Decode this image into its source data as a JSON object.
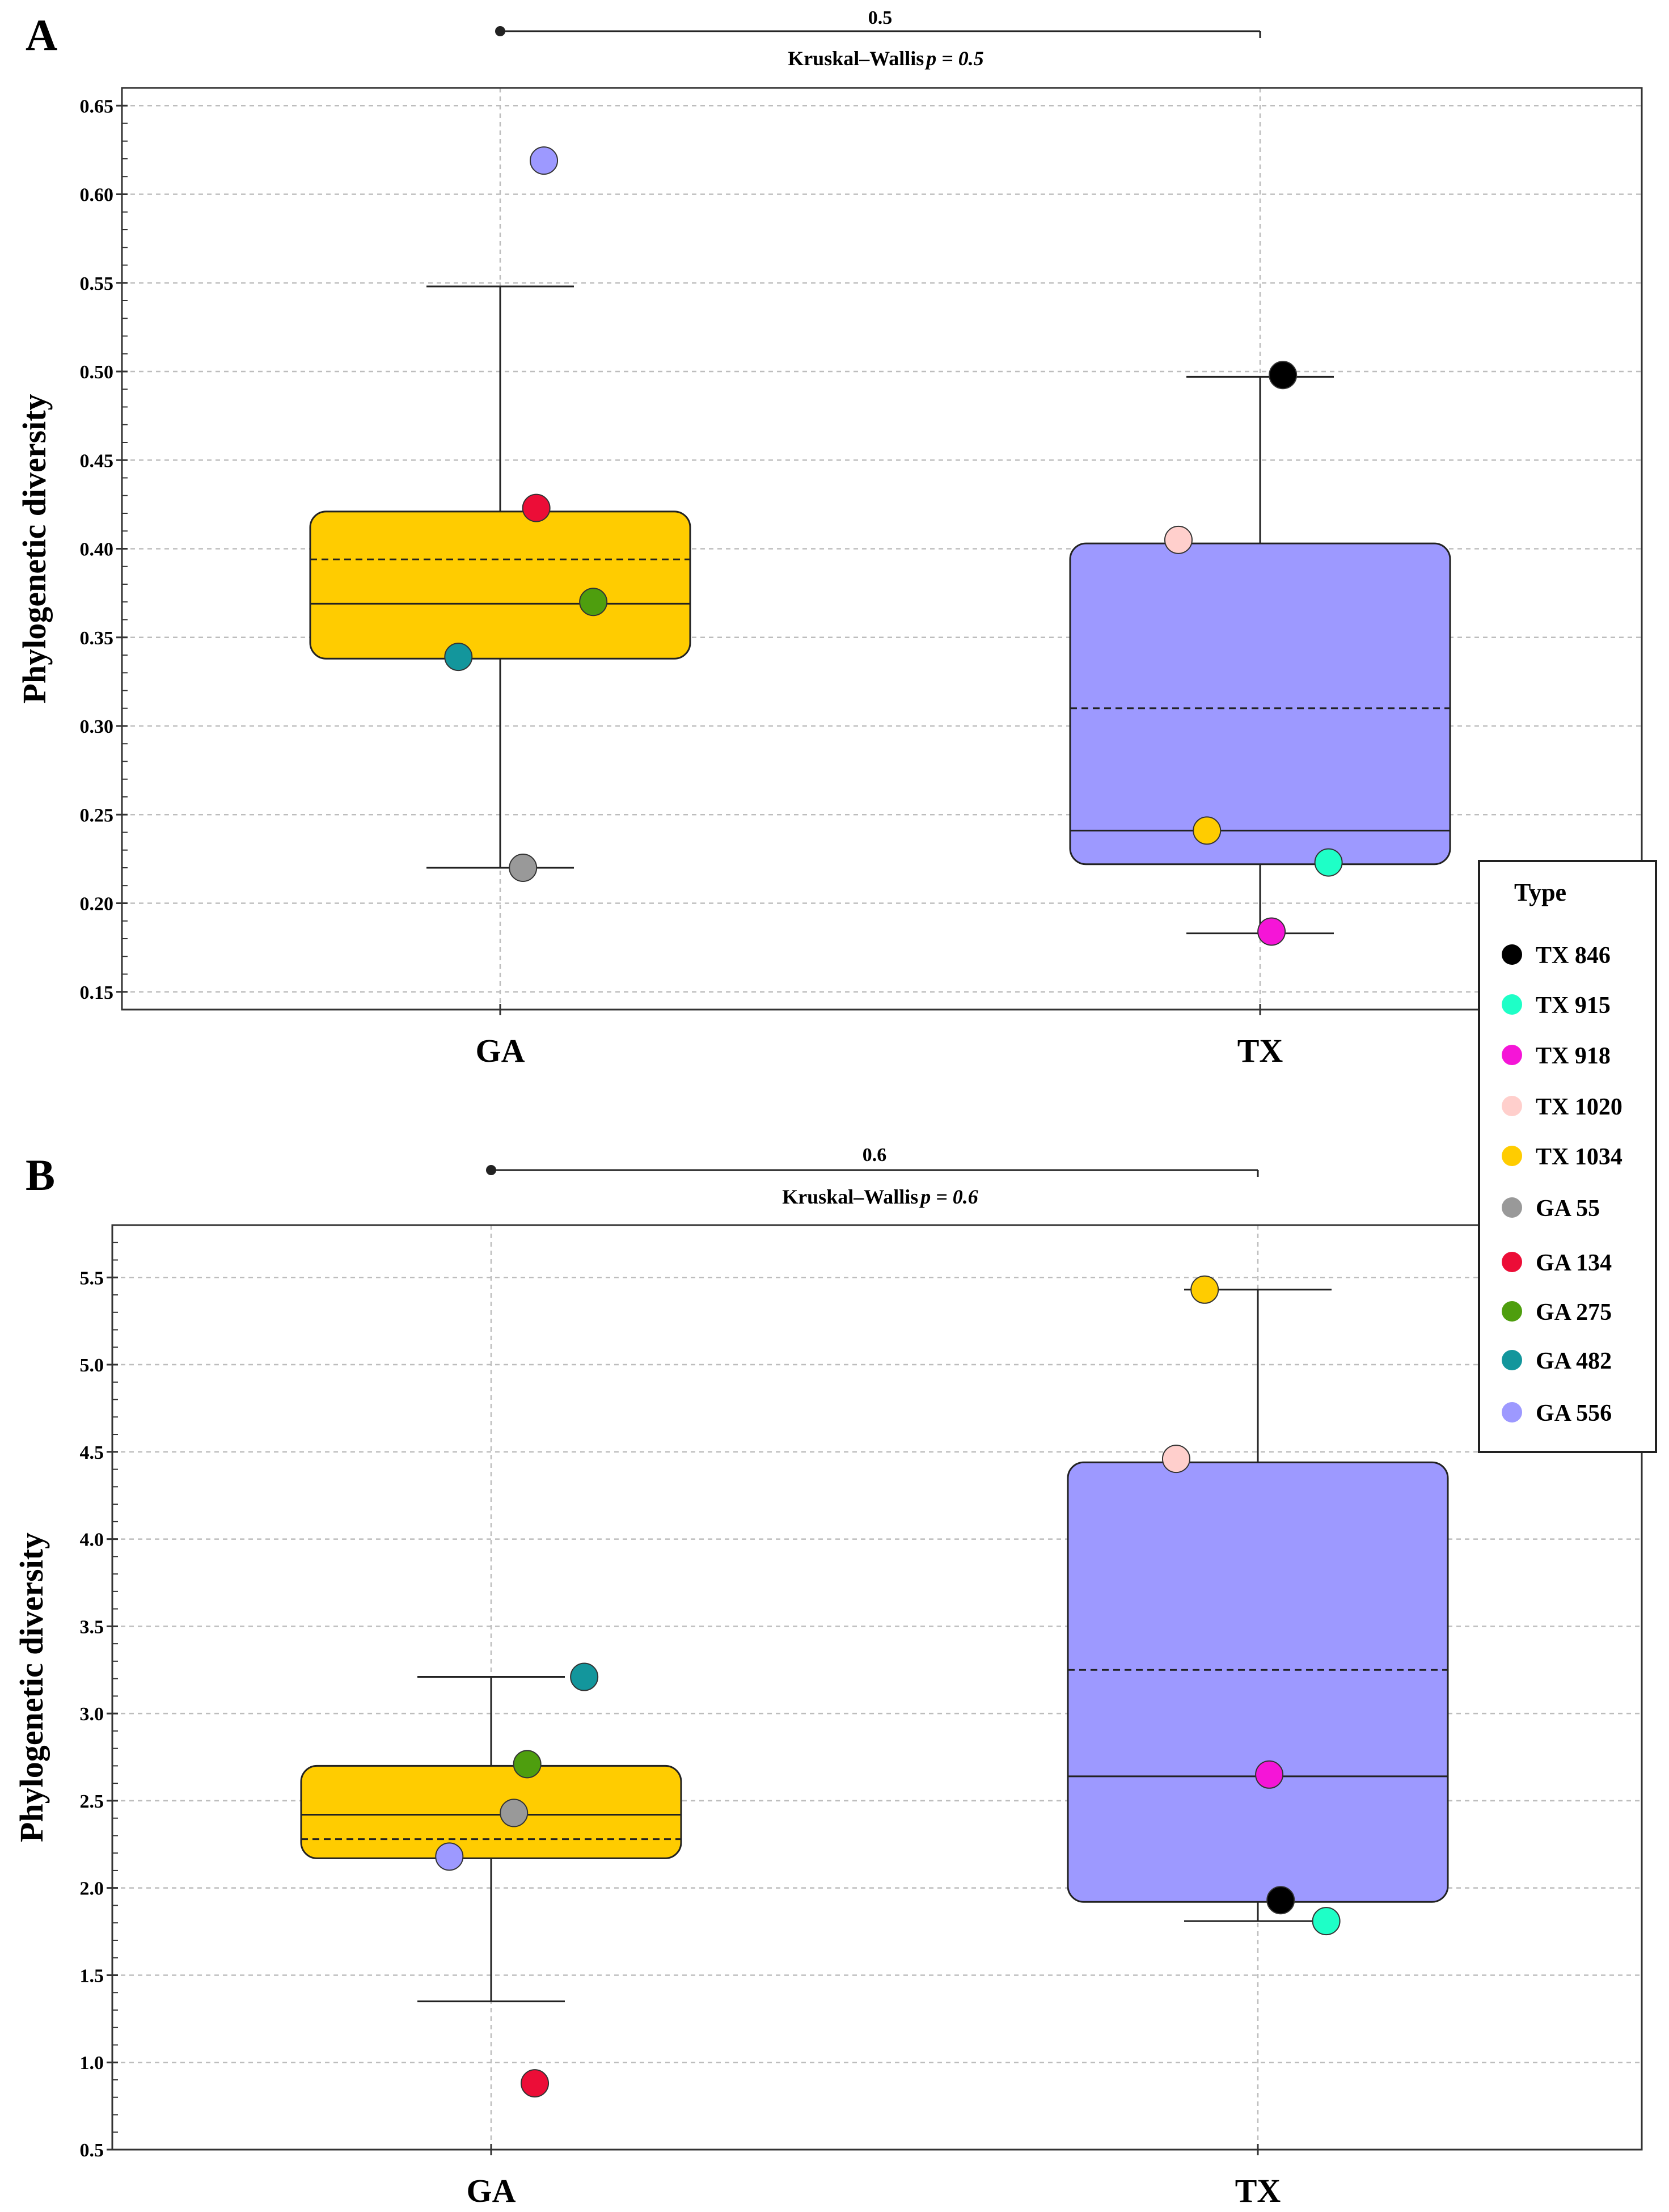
{
  "chart_data": [
    {
      "type": "box",
      "panel": "A",
      "ylabel": "Phylogenetic diversity",
      "xlabel": "",
      "categories": [
        "GA",
        "TX"
      ],
      "ylim": [
        0.14,
        0.66
      ],
      "yticks": [
        "0.15",
        "0.20",
        "0.25",
        "0.30",
        "0.35",
        "0.40",
        "0.45",
        "0.50",
        "0.55",
        "0.60",
        "0.65"
      ],
      "ytick_values": [
        0.15,
        0.2,
        0.25,
        0.3,
        0.35,
        0.4,
        0.45,
        0.5,
        0.55,
        0.6,
        0.65
      ],
      "grid": true,
      "bracket": {
        "label": "0.5",
        "test": "Kruskal–Wallis",
        "p_text": "p = 0.5"
      },
      "boxes": [
        {
          "category": "GA",
          "q1": 0.338,
          "median": 0.369,
          "mean": 0.394,
          "q3": 0.421,
          "whisker_low": 0.22,
          "whisker_high": 0.548,
          "color": "#FFCC00"
        },
        {
          "category": "TX",
          "q1": 0.222,
          "median": 0.241,
          "mean": 0.31,
          "q3": 0.403,
          "whisker_low": 0.183,
          "whisker_high": 0.497,
          "color": "#9D99FF"
        }
      ],
      "points": [
        {
          "type": "GA 556",
          "category": "GA",
          "offset": 0.23,
          "y": 0.619
        },
        {
          "type": "GA 134",
          "category": "GA",
          "offset": 0.19,
          "y": 0.423
        },
        {
          "type": "GA 275",
          "category": "GA",
          "offset": 0.49,
          "y": 0.37
        },
        {
          "type": "GA 482",
          "category": "GA",
          "offset": -0.22,
          "y": 0.339
        },
        {
          "type": "GA 55",
          "category": "GA",
          "offset": 0.12,
          "y": 0.22
        },
        {
          "type": "TX 846",
          "category": "TX",
          "offset": 0.12,
          "y": 0.498
        },
        {
          "type": "TX 1020",
          "category": "TX",
          "offset": -0.43,
          "y": 0.405
        },
        {
          "type": "TX 1034",
          "category": "TX",
          "offset": -0.28,
          "y": 0.241
        },
        {
          "type": "TX 915",
          "category": "TX",
          "offset": 0.36,
          "y": 0.223
        },
        {
          "type": "TX 918",
          "category": "TX",
          "offset": 0.06,
          "y": 0.184
        }
      ]
    },
    {
      "type": "box",
      "panel": "B",
      "ylabel": "Phylogenetic diversity",
      "xlabel": "",
      "categories": [
        "GA",
        "TX"
      ],
      "ylim": [
        0.5,
        5.8
      ],
      "yticks": [
        "0.5",
        "1.0",
        "1.5",
        "2.0",
        "2.5",
        "3.0",
        "3.5",
        "4.0",
        "4.5",
        "5.0",
        "5.5"
      ],
      "ytick_values": [
        0.5,
        1.0,
        1.5,
        2.0,
        2.5,
        3.0,
        3.5,
        4.0,
        4.5,
        5.0,
        5.5
      ],
      "grid": true,
      "bracket": {
        "label": "0.6",
        "test": "Kruskal–Wallis",
        "p_text": "p = 0.6"
      },
      "boxes": [
        {
          "category": "GA",
          "q1": 2.17,
          "median": 2.42,
          "mean": 2.28,
          "q3": 2.7,
          "whisker_low": 1.35,
          "whisker_high": 3.21,
          "color": "#FFCC00"
        },
        {
          "category": "TX",
          "q1": 1.92,
          "median": 2.64,
          "mean": 3.25,
          "q3": 4.44,
          "whisker_low": 1.81,
          "whisker_high": 5.43,
          "color": "#9D99FF"
        }
      ],
      "points": [
        {
          "type": "GA 482",
          "category": "GA",
          "offset": 0.49,
          "y": 3.21
        },
        {
          "type": "GA 275",
          "category": "GA",
          "offset": 0.19,
          "y": 2.71
        },
        {
          "type": "GA 55",
          "category": "GA",
          "offset": 0.12,
          "y": 2.43
        },
        {
          "type": "GA 556",
          "category": "GA",
          "offset": -0.22,
          "y": 2.18
        },
        {
          "type": "GA 134",
          "category": "GA",
          "offset": 0.23,
          "y": 0.88
        },
        {
          "type": "TX 1034",
          "category": "TX",
          "offset": -0.28,
          "y": 5.43
        },
        {
          "type": "TX 1020",
          "category": "TX",
          "offset": -0.43,
          "y": 4.46
        },
        {
          "type": "TX 918",
          "category": "TX",
          "offset": 0.06,
          "y": 2.65
        },
        {
          "type": "TX 846",
          "category": "TX",
          "offset": 0.12,
          "y": 1.93
        },
        {
          "type": "TX 915",
          "category": "TX",
          "offset": 0.36,
          "y": 1.81
        }
      ]
    }
  ],
  "legend": {
    "title": "Type",
    "placement": "right",
    "items": [
      {
        "label": "TX 846",
        "color": "#000000"
      },
      {
        "label": "TX 915",
        "color": "#1EFFC7"
      },
      {
        "label": "TX 918",
        "color": "#F515D7"
      },
      {
        "label": "TX 1020",
        "color": "#FFCFCC"
      },
      {
        "label": "TX 1034",
        "color": "#FFCC00"
      },
      {
        "label": "GA 55",
        "color": "#999999"
      },
      {
        "label": "GA 134",
        "color": "#EC0D37"
      },
      {
        "label": "GA 275",
        "color": "#4E9E0E"
      },
      {
        "label": "GA 482",
        "color": "#13969C"
      },
      {
        "label": "GA 556",
        "color": "#9D99FF"
      }
    ]
  }
}
